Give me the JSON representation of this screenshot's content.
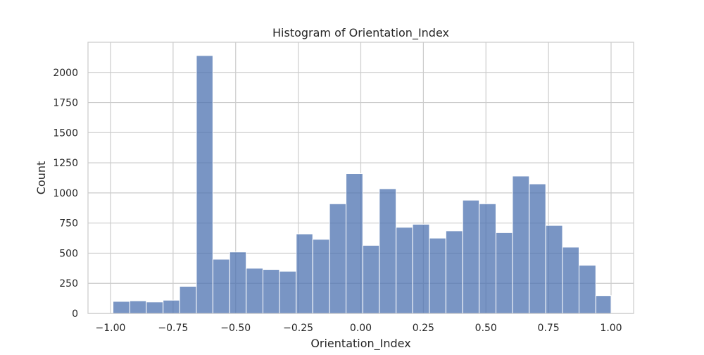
{
  "chart_data": {
    "type": "bar",
    "title": "Histogram of Orientation_Index",
    "xlabel": "Orientation_Index",
    "ylabel": "Count",
    "xlim": [
      -1.09,
      1.09
    ],
    "ylim": [
      0,
      2250
    ],
    "grid": true,
    "bar_color": "#4c72b0",
    "grid_color": "#cccccc",
    "x_ticks": [
      {
        "value": -1.0,
        "label": "−1.00"
      },
      {
        "value": -0.75,
        "label": "−0.75"
      },
      {
        "value": -0.5,
        "label": "−0.50"
      },
      {
        "value": -0.25,
        "label": "−0.25"
      },
      {
        "value": 0.0,
        "label": "0.00"
      },
      {
        "value": 0.25,
        "label": "0.25"
      },
      {
        "value": 0.5,
        "label": "0.50"
      },
      {
        "value": 0.75,
        "label": "0.75"
      },
      {
        "value": 1.0,
        "label": "1.00"
      }
    ],
    "y_ticks": [
      {
        "value": 0,
        "label": "0"
      },
      {
        "value": 250,
        "label": "250"
      },
      {
        "value": 500,
        "label": "500"
      },
      {
        "value": 750,
        "label": "750"
      },
      {
        "value": 1000,
        "label": "1000"
      },
      {
        "value": 1250,
        "label": "1250"
      },
      {
        "value": 1500,
        "label": "1500"
      },
      {
        "value": 1750,
        "label": "1750"
      },
      {
        "value": 2000,
        "label": "2000"
      }
    ],
    "bins": [
      {
        "x0": -0.99,
        "x1": -0.923,
        "count": 100
      },
      {
        "x0": -0.923,
        "x1": -0.857,
        "count": 105
      },
      {
        "x0": -0.857,
        "x1": -0.79,
        "count": 95
      },
      {
        "x0": -0.79,
        "x1": -0.724,
        "count": 110
      },
      {
        "x0": -0.724,
        "x1": -0.657,
        "count": 225
      },
      {
        "x0": -0.657,
        "x1": -0.591,
        "count": 2140
      },
      {
        "x0": -0.591,
        "x1": -0.524,
        "count": 450
      },
      {
        "x0": -0.524,
        "x1": -0.458,
        "count": 510
      },
      {
        "x0": -0.458,
        "x1": -0.391,
        "count": 375
      },
      {
        "x0": -0.391,
        "x1": -0.325,
        "count": 365
      },
      {
        "x0": -0.325,
        "x1": -0.258,
        "count": 350
      },
      {
        "x0": -0.258,
        "x1": -0.192,
        "count": 660
      },
      {
        "x0": -0.192,
        "x1": -0.125,
        "count": 615
      },
      {
        "x0": -0.125,
        "x1": -0.059,
        "count": 910
      },
      {
        "x0": -0.059,
        "x1": 0.008,
        "count": 1160
      },
      {
        "x0": 0.008,
        "x1": 0.074,
        "count": 565
      },
      {
        "x0": 0.074,
        "x1": 0.141,
        "count": 1035
      },
      {
        "x0": 0.141,
        "x1": 0.207,
        "count": 715
      },
      {
        "x0": 0.207,
        "x1": 0.274,
        "count": 740
      },
      {
        "x0": 0.274,
        "x1": 0.34,
        "count": 625
      },
      {
        "x0": 0.34,
        "x1": 0.407,
        "count": 685
      },
      {
        "x0": 0.407,
        "x1": 0.473,
        "count": 940
      },
      {
        "x0": 0.473,
        "x1": 0.54,
        "count": 910
      },
      {
        "x0": 0.54,
        "x1": 0.606,
        "count": 670
      },
      {
        "x0": 0.606,
        "x1": 0.673,
        "count": 1140
      },
      {
        "x0": 0.673,
        "x1": 0.739,
        "count": 1075
      },
      {
        "x0": 0.739,
        "x1": 0.806,
        "count": 730
      },
      {
        "x0": 0.806,
        "x1": 0.872,
        "count": 550
      },
      {
        "x0": 0.872,
        "x1": 0.939,
        "count": 400
      },
      {
        "x0": 0.939,
        "x1": 1.0,
        "count": 148
      }
    ]
  }
}
